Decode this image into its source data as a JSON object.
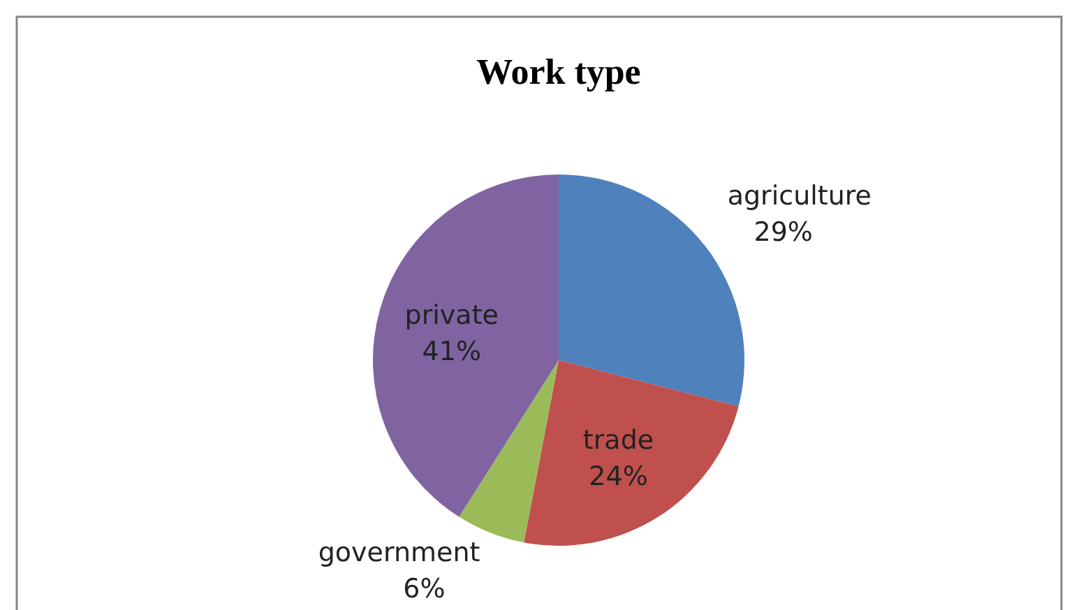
{
  "chart_data": {
    "type": "pie",
    "title": "Work type",
    "categories": [
      "agriculture",
      "trade",
      "government",
      "private"
    ],
    "values": [
      29,
      24,
      6,
      41
    ],
    "colors": [
      "#4f81bd",
      "#c0504d",
      "#9bbb59",
      "#8064a2"
    ],
    "value_labels": [
      "29%",
      "24%",
      "6%",
      "41%"
    ],
    "legend": false
  }
}
